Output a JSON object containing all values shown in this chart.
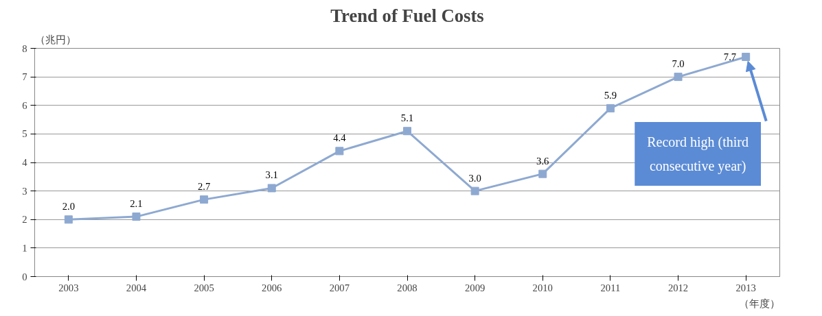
{
  "chart_data": {
    "type": "line",
    "title": "Trend of Fuel Costs",
    "ylabel": "（兆円）",
    "xlabel": "（年度）",
    "categories": [
      "2003",
      "2004",
      "2005",
      "2006",
      "2007",
      "2008",
      "2009",
      "2010",
      "2011",
      "2012",
      "2013"
    ],
    "series": [
      {
        "color": "#8ea9d1",
        "values": [
          2.0,
          2.1,
          2.7,
          3.1,
          4.4,
          5.1,
          3.0,
          3.6,
          5.9,
          7.0,
          7.7
        ]
      }
    ],
    "ylim": [
      0,
      8
    ],
    "yticks": [
      0,
      1,
      2,
      3,
      4,
      5,
      6,
      7,
      8
    ],
    "grid": "y",
    "marker": "square",
    "line_style": "solid",
    "value_labels": [
      "2.0",
      "2.1",
      "2.7",
      "3.1",
      "4.4",
      "5.1",
      "3.0",
      "3.6",
      "5.9",
      "7.0",
      "7.7"
    ],
    "annotations": [
      "Record high (third consecutive year)"
    ]
  }
}
